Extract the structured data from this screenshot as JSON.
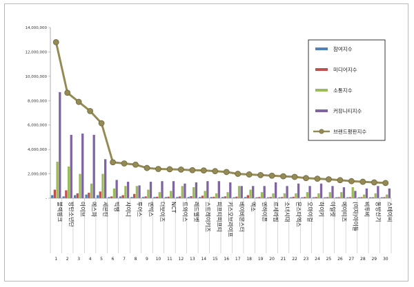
{
  "chart_data": {
    "type": "bar",
    "title": "",
    "xlabel": "",
    "ylabel": "",
    "ylim": [
      0,
      14000000
    ],
    "yticks": [
      "-",
      "2,000,000",
      "4,000,000",
      "6,000,000",
      "8,000,000",
      "10,000,000",
      "12,000,000",
      "14,000,000"
    ],
    "grid": false,
    "legend_position": "right",
    "categories": [
      "블랙핑크",
      "방탄소년단",
      "아이브",
      "에스파",
      "세븐틴",
      "빅뱅",
      "샤이니",
      "투어스",
      "엔믹스",
      "더보이즈",
      "NCT",
      "트와이스",
      "레드벨벳",
      "스트레이키즈",
      "피프티피프티",
      "키스오브라이프",
      "베이비몬스터",
      "엑소",
      "엔하이픈",
      "르세라핌",
      "소녀시대",
      "몬스타엑스",
      "오마이걸",
      "하이키",
      "아일릿",
      "에이티즈",
      "(여자)아이들",
      "비투비",
      "동방신기",
      "스테이씨"
    ],
    "ranks": [
      "1",
      "2",
      "3",
      "4",
      "5",
      "6",
      "7",
      "8",
      "9",
      "10",
      "11",
      "12",
      "13",
      "14",
      "15",
      "16",
      "17",
      "18",
      "19",
      "20",
      "21",
      "22",
      "23",
      "24",
      "25",
      "26",
      "27",
      "28",
      "29",
      "30"
    ],
    "series": [
      {
        "name": "참여지수",
        "kind": "bar",
        "color": "#4f81bd",
        "values": [
          250000,
          150000,
          250000,
          300000,
          250000,
          100000,
          150000,
          100000,
          100000,
          100000,
          100000,
          100000,
          100000,
          100000,
          100000,
          100000,
          80000,
          100000,
          80000,
          80000,
          80000,
          80000,
          80000,
          80000,
          80000,
          80000,
          80000,
          80000,
          80000,
          80000
        ]
      },
      {
        "name": "미디어지수",
        "kind": "bar",
        "color": "#c0504d",
        "values": [
          700000,
          650000,
          400000,
          450000,
          550000,
          150000,
          250000,
          350000,
          150000,
          120000,
          130000,
          150000,
          170000,
          200000,
          120000,
          150000,
          130000,
          250000,
          100000,
          100000,
          100000,
          120000,
          100000,
          100000,
          90000,
          90000,
          90000,
          90000,
          80000,
          90000
        ]
      },
      {
        "name": "소통지수",
        "kind": "bar",
        "color": "#9bbb59",
        "values": [
          3000000,
          2600000,
          2000000,
          1200000,
          2000000,
          800000,
          1000000,
          1000000,
          700000,
          500000,
          600000,
          1000000,
          900000,
          600000,
          400000,
          500000,
          1000000,
          700000,
          500000,
          400000,
          400000,
          400000,
          500000,
          400000,
          500000,
          500000,
          900000,
          300000,
          400000,
          300000
        ]
      },
      {
        "name": "커뮤니티지수",
        "kind": "bar",
        "color": "#8064a2",
        "values": [
          8700000,
          5200000,
          5300000,
          5200000,
          3200000,
          1500000,
          1350000,
          1050000,
          1350000,
          1400000,
          1400000,
          1200000,
          1300000,
          1400000,
          1400000,
          1300000,
          1000000,
          1000000,
          1000000,
          1300000,
          1000000,
          1200000,
          1000000,
          1200000,
          1000000,
          900000,
          600000,
          800000,
          1000000,
          800000
        ]
      },
      {
        "name": "브랜드평판지수",
        "kind": "line",
        "color": "#948a54",
        "values": [
          12800000,
          8650000,
          7900000,
          7150000,
          6150000,
          2950000,
          2850000,
          2750000,
          2480000,
          2400000,
          2380000,
          2350000,
          2300000,
          2280000,
          2220000,
          2150000,
          2000000,
          1950000,
          1900000,
          1850000,
          1800000,
          1750000,
          1650000,
          1600000,
          1550000,
          1480000,
          1400000,
          1350000,
          1300000,
          1250000
        ]
      }
    ]
  }
}
